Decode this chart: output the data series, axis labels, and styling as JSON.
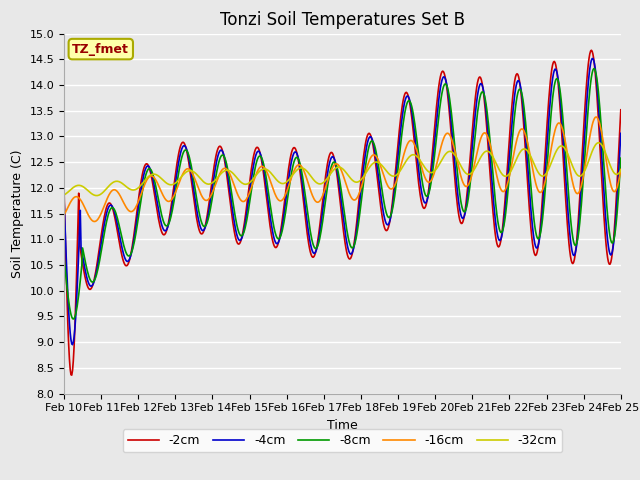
{
  "title": "Tonzi Soil Temperatures Set B",
  "xlabel": "Time",
  "ylabel": "Soil Temperature (C)",
  "ylim": [
    8.0,
    15.0
  ],
  "yticks": [
    8.0,
    8.5,
    9.0,
    9.5,
    10.0,
    10.5,
    11.0,
    11.5,
    12.0,
    12.5,
    13.0,
    13.5,
    14.0,
    14.5,
    15.0
  ],
  "xtick_labels": [
    "Feb 10",
    "Feb 11",
    "Feb 12",
    "Feb 13",
    "Feb 14",
    "Feb 15",
    "Feb 16",
    "Feb 17",
    "Feb 18",
    "Feb 19",
    "Feb 20",
    "Feb 21",
    "Feb 22",
    "Feb 23",
    "Feb 24",
    "Feb 25"
  ],
  "series_colors": [
    "#cc0000",
    "#0000cc",
    "#009900",
    "#ff8800",
    "#cccc00"
  ],
  "series_labels": [
    "-2cm",
    "-4cm",
    "-8cm",
    "-16cm",
    "-32cm"
  ],
  "series_linewidth": 1.2,
  "bg_color": "#e8e8e8",
  "legend_label": "TZ_fmet",
  "legend_box_facecolor": "#ffffaa",
  "legend_box_edgecolor": "#aaaa00",
  "legend_text_color": "#990000",
  "title_fontsize": 12,
  "axis_label_fontsize": 9,
  "tick_fontsize": 8
}
